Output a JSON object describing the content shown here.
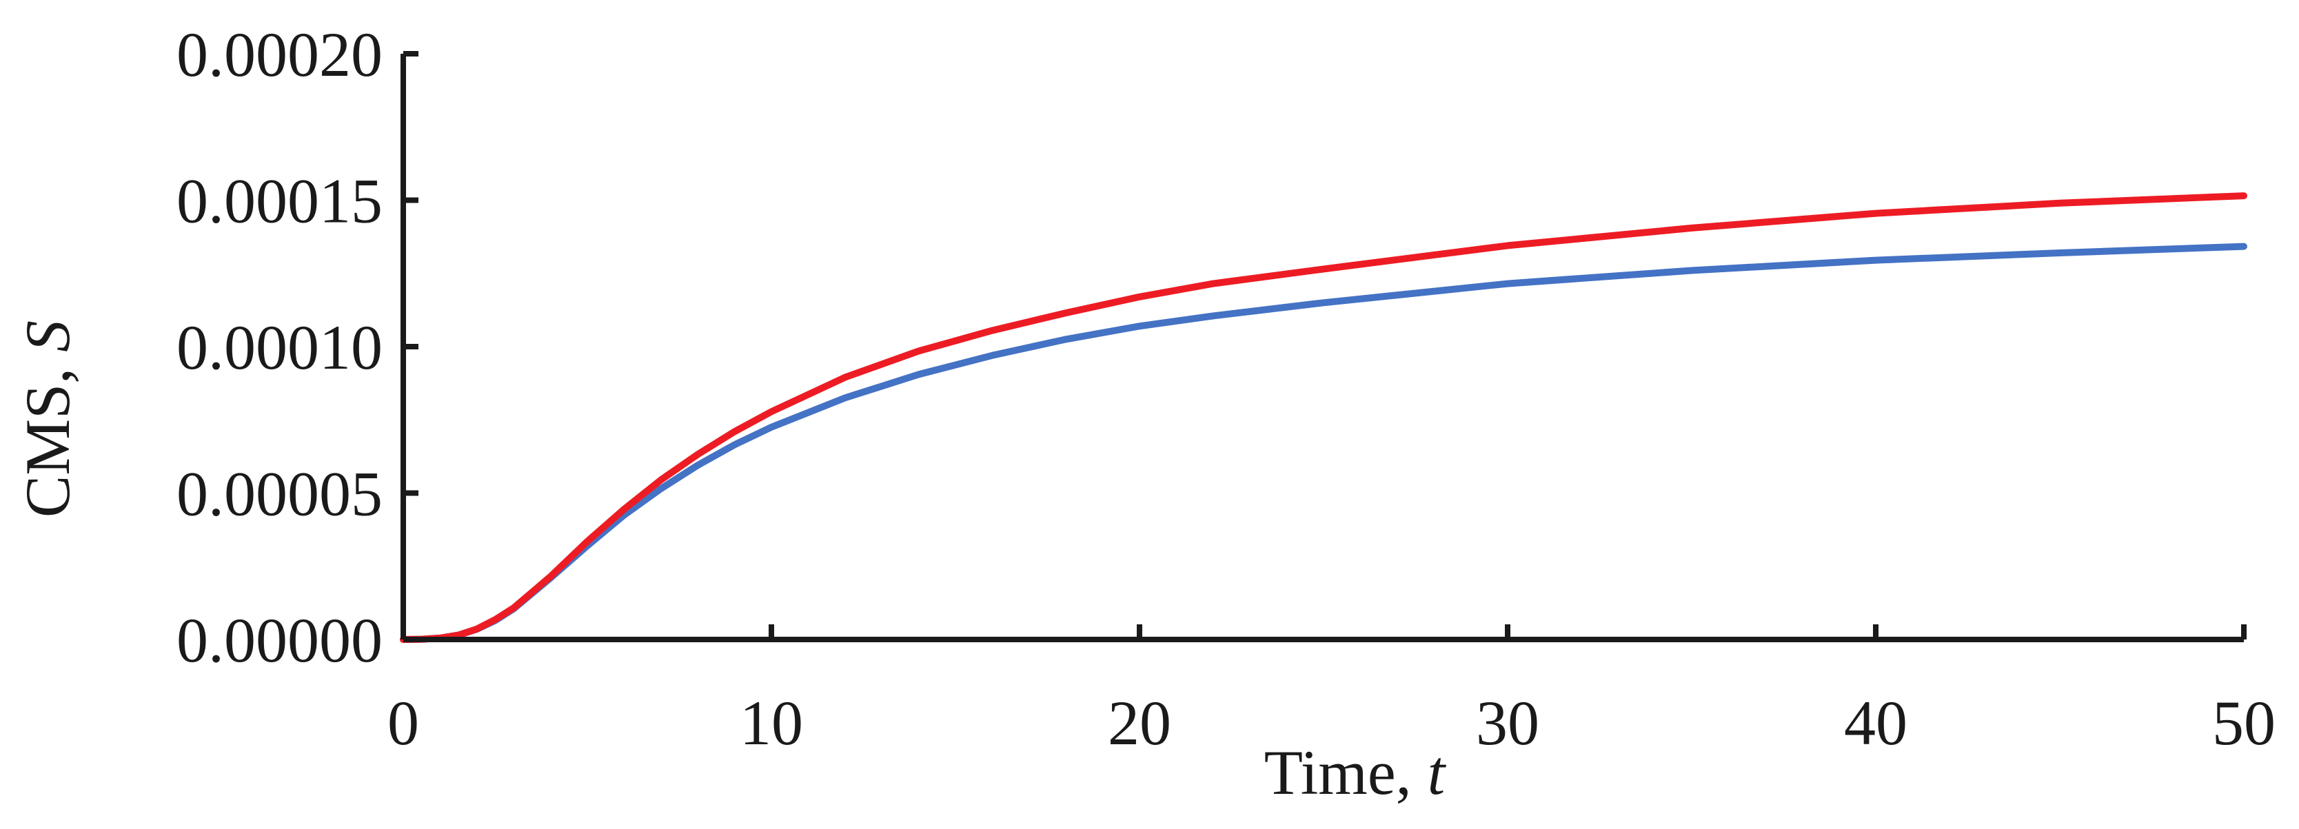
{
  "chart_data": {
    "type": "line",
    "xlabel": "Time, ",
    "xlabel_var": "t",
    "ylabel": "CMS, ",
    "ylabel_var": "S",
    "xlim": [
      0,
      50
    ],
    "ylim": [
      0,
      0.0002
    ],
    "x_ticks": [
      0,
      10,
      20,
      30,
      40,
      50
    ],
    "x_tick_labels": [
      "0",
      "10",
      "20",
      "30",
      "40",
      "50"
    ],
    "y_ticks": [
      0,
      5e-05,
      0.0001,
      0.00015,
      0.0002
    ],
    "y_tick_labels": [
      "0.00000",
      "0.00005",
      "0.00010",
      "0.00015",
      "0.00020"
    ],
    "grid": false,
    "legend": "none",
    "x": [
      0,
      0.5,
      1,
      1.5,
      2,
      2.5,
      3,
      4,
      5,
      6,
      7,
      8,
      9,
      10,
      12,
      14,
      16,
      18,
      20,
      22,
      25,
      30,
      35,
      40,
      45,
      50
    ],
    "series": [
      {
        "color": "#4472c4",
        "values": [
          0,
          1e-07,
          5e-07,
          1.5e-06,
          3.5e-06,
          6.5e-06,
          1.05e-05,
          2.1e-05,
          3.2e-05,
          4.25e-05,
          5.15e-05,
          5.95e-05,
          6.65e-05,
          7.25e-05,
          8.25e-05,
          9.05e-05,
          9.7e-05,
          0.0001025,
          0.000107,
          0.0001105,
          0.000115,
          0.0001215,
          0.000126,
          0.0001295,
          0.000132,
          0.0001342
        ]
      },
      {
        "color": "#ed1c24",
        "values": [
          0,
          1e-07,
          5e-07,
          1.5e-06,
          3.6e-06,
          6.8e-06,
          1.08e-05,
          2.15e-05,
          3.35e-05,
          4.45e-05,
          5.45e-05,
          6.32e-05,
          7.1e-05,
          7.78e-05,
          8.95e-05,
          9.85e-05,
          0.0001055,
          0.0001115,
          0.000117,
          0.0001215,
          0.0001265,
          0.0001345,
          0.0001405,
          0.0001455,
          0.000149,
          0.0001515
        ]
      }
    ]
  }
}
